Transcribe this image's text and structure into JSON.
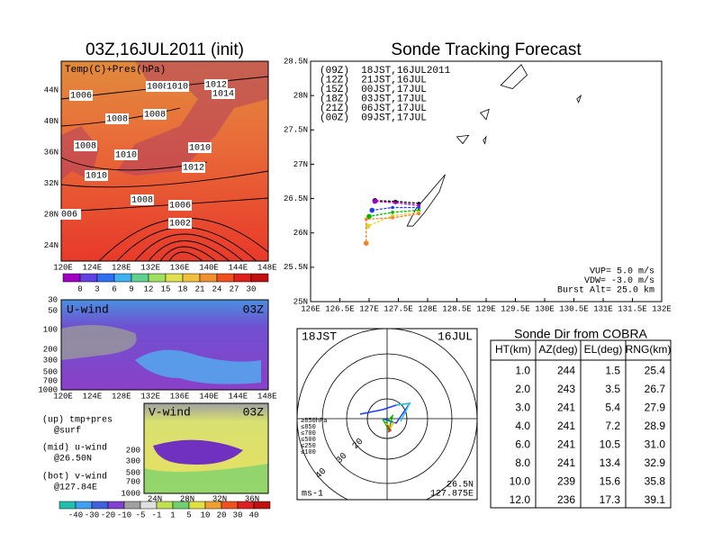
{
  "left_panel": {
    "title": "03Z,16JUL2011 (init)",
    "label": "Temp(C)+Pres(hPa)",
    "lat_labels": [
      "44N",
      "40N",
      "36N",
      "32N",
      "28N",
      "24N"
    ],
    "lon_labels": [
      "120E",
      "124E",
      "128E",
      "132E",
      "136E",
      "140E",
      "144E",
      "148E"
    ],
    "contour_labels": [
      "1006",
      "1008",
      "1010",
      "1012",
      "1014",
      "1008",
      "1008",
      "1008",
      "1010",
      "1010",
      "1012",
      "1010",
      "1008",
      "1006",
      "006",
      "1002"
    ],
    "colorbar_labels": [
      "0",
      "3",
      "6",
      "9",
      "12",
      "15",
      "18",
      "21",
      "24",
      "27",
      "30"
    ]
  },
  "u_panel": {
    "label": "U-wind",
    "time": "03Z",
    "levels": [
      "30",
      "50",
      "100",
      "200",
      "300",
      "500",
      "700",
      "1000"
    ],
    "lon_labels": [
      "120E",
      "124E",
      "128E",
      "132E",
      "136E",
      "140E",
      "144E",
      "148E"
    ]
  },
  "v_panel": {
    "label": "V-wind",
    "time": "03Z",
    "levels": [
      "200",
      "300",
      "500",
      "700",
      "1000"
    ],
    "lat_labels": [
      "24N",
      "28N",
      "32N",
      "36N"
    ],
    "colorbar_labels": [
      "-40",
      "-30",
      "-20",
      "-10",
      "-5",
      "-1",
      "1",
      "5",
      "10",
      "20",
      "30",
      "40"
    ]
  },
  "notes": [
    "(up) tmp+pres",
    "@surf",
    "(mid) u-wind",
    "@26.50N",
    "(bot) v-wind",
    "@127.84E"
  ],
  "hodograph": {
    "time": "18JST",
    "date": "16JUL",
    "levels": [
      "≥850hPa",
      "≤850",
      "≤700",
      "≤500",
      "≤250",
      "≤100"
    ],
    "ring_labels": [
      "20",
      "30",
      "40"
    ],
    "lat": "26.5N",
    "lon": "127.875E",
    "unit": "ms-1"
  },
  "table": {
    "title": "Sonde Dir from COBRA",
    "header": [
      "HT(km)",
      "AZ(deg)",
      "EL(deg)",
      "RNG(km)"
    ],
    "rows": [
      [
        "1.0",
        "244",
        "1.5",
        "25.4"
      ],
      [
        "2.0",
        "243",
        "3.5",
        "26.7"
      ],
      [
        "3.0",
        "241",
        "5.4",
        "27.9"
      ],
      [
        "4.0",
        "241",
        "7.2",
        "28.9"
      ],
      [
        "6.0",
        "241",
        "10.5",
        "31.0"
      ],
      [
        "8.0",
        "241",
        "13.4",
        "32.9"
      ],
      [
        "10.0",
        "239",
        "15.6",
        "35.8"
      ],
      [
        "12.0",
        "236",
        "17.3",
        "39.1"
      ]
    ]
  },
  "chart_data": {
    "type": "line",
    "title": "Sonde Tracking Forecast",
    "xlim": [
      126,
      132
    ],
    "ylim": [
      25,
      28.5
    ],
    "xticks": [
      {
        "value": 126,
        "label": "126E"
      },
      {
        "value": 126.5,
        "label": "126.5E"
      },
      {
        "value": 127,
        "label": "127E"
      },
      {
        "value": 127.5,
        "label": "127.5E"
      },
      {
        "value": 128,
        "label": "128E"
      },
      {
        "value": 128.5,
        "label": "128.5E"
      },
      {
        "value": 129,
        "label": "129E"
      },
      {
        "value": 129.5,
        "label": "129.5E"
      },
      {
        "value": 130,
        "label": "130E"
      },
      {
        "value": 130.5,
        "label": "130.5E"
      },
      {
        "value": 131,
        "label": "131E"
      },
      {
        "value": 131.5,
        "label": "131.5E"
      },
      {
        "value": 132,
        "label": "132E"
      }
    ],
    "yticks": [
      {
        "value": 25,
        "label": "25N"
      },
      {
        "value": 25.5,
        "label": "25.5N"
      },
      {
        "value": 26,
        "label": "26N"
      },
      {
        "value": 26.5,
        "label": "26.5N"
      },
      {
        "value": 27,
        "label": "27N"
      },
      {
        "value": 27.5,
        "label": "27.5N"
      },
      {
        "value": 28,
        "label": "28N"
      },
      {
        "value": 28.5,
        "label": "28.5N"
      }
    ],
    "grid": false,
    "legend": "top-left",
    "series": [
      {
        "name": "(09Z)  18JST,16JUL2011",
        "color": "#000000",
        "x": [
          127.85,
          127.45,
          127.1
        ],
        "values": [
          26.43,
          26.46,
          26.47
        ]
      },
      {
        "name": "(12Z)  21JST,16JUL",
        "color": "#a000c8",
        "x": [
          127.85,
          127.45,
          127.1
        ],
        "values": [
          26.4,
          26.44,
          26.46
        ]
      },
      {
        "name": "(15Z)  00JST,17JUL",
        "color": "#1e3cff",
        "x": [
          127.85,
          127.4,
          127.05
        ],
        "values": [
          26.37,
          26.37,
          26.33
        ]
      },
      {
        "name": "(18Z)  03JST,17JUL",
        "color": "#00b400",
        "x": [
          127.85,
          127.4,
          127.0
        ],
        "values": [
          26.33,
          26.3,
          26.24
        ]
      },
      {
        "name": "(21Z)  06JST,17JUL",
        "color": "#e6d232",
        "x": [
          127.85,
          127.4,
          126.98
        ],
        "values": [
          26.3,
          26.25,
          26.1
        ]
      },
      {
        "name": "(00Z)  09JST,17JUL",
        "color": "#f08228",
        "x": [
          127.85,
          127.4,
          126.95,
          126.95
        ],
        "values": [
          26.28,
          26.22,
          26.2,
          25.85
        ]
      }
    ],
    "annotations": [
      "VUP= 5.0 m/s",
      "VDW= -3.0 m/s",
      "Burst Alt= 25.0 km"
    ]
  }
}
